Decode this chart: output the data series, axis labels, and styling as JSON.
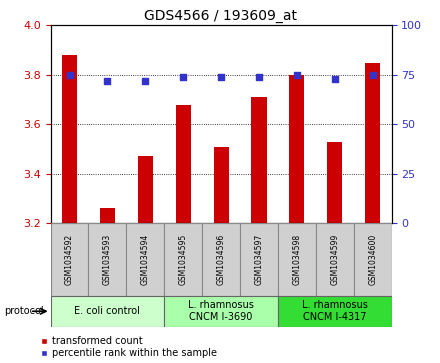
{
  "title": "GDS4566 / 193609_at",
  "samples": [
    "GSM1034592",
    "GSM1034593",
    "GSM1034594",
    "GSM1034595",
    "GSM1034596",
    "GSM1034597",
    "GSM1034598",
    "GSM1034599",
    "GSM1034600"
  ],
  "bar_values": [
    3.88,
    3.26,
    3.47,
    3.68,
    3.51,
    3.71,
    3.8,
    3.53,
    3.85
  ],
  "percentile_values": [
    75,
    72,
    72,
    74,
    74,
    74,
    75,
    73,
    75
  ],
  "bar_color": "#cc0000",
  "percentile_color": "#3333cc",
  "ylim_left": [
    3.2,
    4.0
  ],
  "ylim_right": [
    0,
    100
  ],
  "yticks_left": [
    3.2,
    3.4,
    3.6,
    3.8,
    4.0
  ],
  "yticks_right": [
    0,
    25,
    50,
    75,
    100
  ],
  "grid_values": [
    3.4,
    3.6,
    3.8
  ],
  "bar_bottom": 3.2,
  "protocols": [
    {
      "label": "E. coli control",
      "start": 0,
      "end": 3,
      "color": "#ccffcc"
    },
    {
      "label": "L. rhamnosus\nCNCM I-3690",
      "start": 3,
      "end": 6,
      "color": "#aaffaa"
    },
    {
      "label": "L. rhamnosus\nCNCM I-4317",
      "start": 6,
      "end": 9,
      "color": "#33dd33"
    }
  ],
  "legend_bar_label": "transformed count",
  "legend_pct_label": "percentile rank within the sample",
  "protocol_label": "protocol",
  "sample_box_color": "#d0d0d0",
  "bar_width": 0.4,
  "title_fontsize": 10,
  "axis_fontsize": 8,
  "sample_fontsize": 5.5,
  "proto_fontsize": 7,
  "legend_fontsize": 7
}
